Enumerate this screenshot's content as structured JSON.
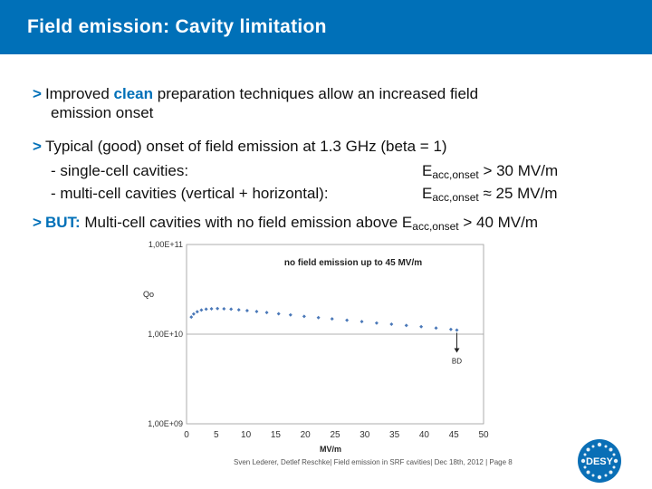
{
  "slide": {
    "title": "Field emission: Cavity limitation",
    "bullet1": {
      "marker": ">",
      "pre": "Improved ",
      "highlight": "clean",
      "post": " preparation techniques allow an increased field",
      "line2": "emission onset"
    },
    "bullet2": {
      "marker": ">",
      "line1": "Typical (good) onset of field emission at 1.3 GHz (beta = 1)",
      "item1_label": "- single-cell cavities:",
      "item1_e": "E",
      "item1_sub": "acc,onset",
      "item1_val": " > 30 MV/m",
      "item2_label": "- multi-cell cavities (vertical + horizontal):",
      "item2_e": "E",
      "item2_sub": "acc,onset",
      "item2_val": " ≈ 25 MV/m"
    },
    "bullet3": {
      "marker": ">",
      "highlight": "BUT:",
      "text": " Multi-cell cavities with no field emission above E",
      "sub": "acc,onset",
      "post": " > 40 MV/m"
    },
    "footer": "Sven Lederer, Detlef Reschke| Field emission in SRF cavities| Dec 18th, 2012 | Page 8",
    "logo_text": "DESY"
  },
  "chart_data": {
    "type": "scatter",
    "title": "no field emission up to 45 MV/m",
    "xlabel": "MV/m",
    "ylabel": "Qo",
    "y_scale": "log",
    "xlim": [
      0,
      50
    ],
    "ylim": [
      1000000000.0,
      100000000000.0
    ],
    "x_ticks": [
      "0",
      "5",
      "10",
      "15",
      "20",
      "25",
      "30",
      "35",
      "40",
      "45",
      "50"
    ],
    "y_ticks": [
      "1,00E+11",
      "1,00E+10",
      "1,00E+09"
    ],
    "grid": "horizontal",
    "annotation": "BD",
    "marker_color": "#4a78b8",
    "series": [
      {
        "x": [
          0.8,
          1.2,
          1.8,
          2.5,
          3.3,
          4.2,
          5.2,
          6.3,
          7.5,
          8.8,
          10.2,
          11.8,
          13.5,
          15.5,
          17.5,
          19.8,
          22.2,
          24.5,
          27,
          29.5,
          32,
          34.5,
          37,
          39.5,
          42,
          44.5,
          45.5
        ],
        "y": [
          15500000000.0,
          16800000000.0,
          17800000000.0,
          18600000000.0,
          19000000000.0,
          19200000000.0,
          19300000000.0,
          19200000000.0,
          19000000000.0,
          18700000000.0,
          18300000000.0,
          17900000000.0,
          17400000000.0,
          16900000000.0,
          16400000000.0,
          15800000000.0,
          15300000000.0,
          14800000000.0,
          14300000000.0,
          13800000000.0,
          13300000000.0,
          12900000000.0,
          12500000000.0,
          12100000000.0,
          11700000000.0,
          11300000000.0,
          11100000000.0
        ]
      }
    ]
  }
}
